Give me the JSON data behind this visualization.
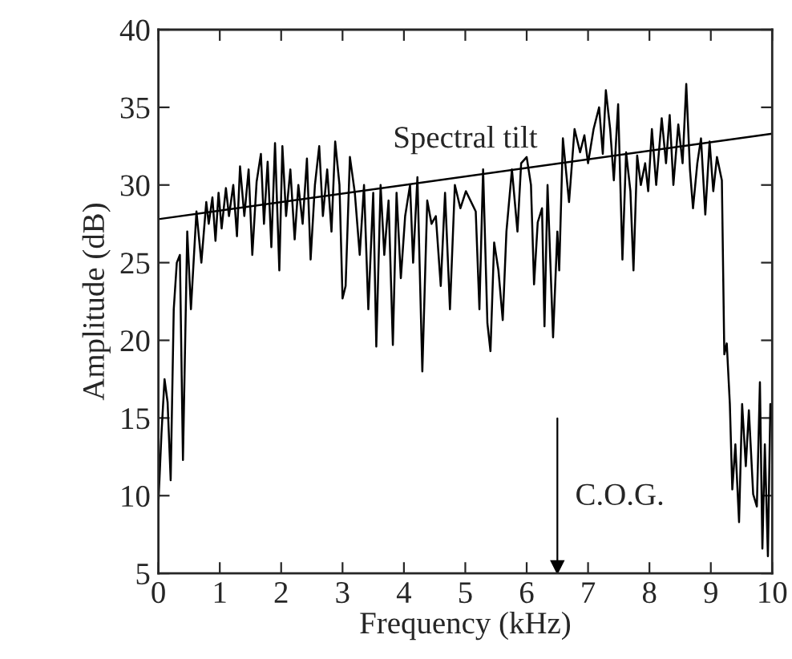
{
  "chart_data": {
    "type": "line",
    "xlabel": "Frequency (kHz)",
    "ylabel": "Amplitude (dB)",
    "xlim": [
      0,
      10
    ],
    "ylim": [
      5,
      40
    ],
    "xticks": [
      0,
      1,
      2,
      3,
      4,
      5,
      6,
      7,
      8,
      9,
      10
    ],
    "yticks": [
      5,
      10,
      15,
      20,
      25,
      30,
      35,
      40
    ],
    "grid": false,
    "legend": false,
    "series": [
      {
        "color": "#000000",
        "x": [
          0,
          0.05,
          0.1,
          0.15,
          0.2,
          0.25,
          0.3,
          0.35,
          0.4,
          0.47,
          0.53,
          0.62,
          0.7,
          0.78,
          0.82,
          0.88,
          0.93,
          0.98,
          1.03,
          1.1,
          1.15,
          1.22,
          1.28,
          1.33,
          1.4,
          1.47,
          1.53,
          1.6,
          1.67,
          1.72,
          1.78,
          1.84,
          1.9,
          1.97,
          2.02,
          2.08,
          2.15,
          2.22,
          2.28,
          2.35,
          2.42,
          2.48,
          2.55,
          2.62,
          2.68,
          2.75,
          2.82,
          2.88,
          2.95,
          3.0,
          3.05,
          3.12,
          3.2,
          3.28,
          3.35,
          3.42,
          3.5,
          3.55,
          3.62,
          3.68,
          3.75,
          3.82,
          3.88,
          3.95,
          4.02,
          4.1,
          4.15,
          4.22,
          4.3,
          4.38,
          4.45,
          4.52,
          4.6,
          4.67,
          4.75,
          4.83,
          4.92,
          5.01,
          5.17,
          5.23,
          5.29,
          5.36,
          5.41,
          5.47,
          5.54,
          5.61,
          5.67,
          5.76,
          5.85,
          5.91,
          6.0,
          6.07,
          6.12,
          6.18,
          6.25,
          6.29,
          6.34,
          6.43,
          6.5,
          6.53,
          6.59,
          6.69,
          6.78,
          6.87,
          6.94,
          7.0,
          7.09,
          7.18,
          7.24,
          7.29,
          7.36,
          7.42,
          7.49,
          7.56,
          7.62,
          7.69,
          7.74,
          7.8,
          7.86,
          7.93,
          7.98,
          8.04,
          8.11,
          8.2,
          8.27,
          8.33,
          8.39,
          8.47,
          8.54,
          8.6,
          8.66,
          8.71,
          8.78,
          8.84,
          8.91,
          8.98,
          9.04,
          9.1,
          9.18,
          9.22,
          9.26,
          9.31,
          9.35,
          9.4,
          9.46,
          9.51,
          9.57,
          9.62,
          9.69,
          9.75,
          9.8,
          9.84,
          9.88,
          9.93,
          9.97
        ],
        "values": [
          9.5,
          14,
          17.5,
          16,
          11,
          22,
          25,
          25.5,
          12.3,
          27,
          22,
          28.3,
          25,
          28.9,
          27.5,
          29.2,
          26.4,
          29.5,
          27.2,
          29.8,
          28,
          30,
          26.7,
          31.2,
          28,
          31,
          25.5,
          30.2,
          32,
          27.5,
          31.5,
          26,
          32.7,
          24.5,
          32.5,
          28,
          31,
          26.5,
          30,
          27.5,
          31.7,
          25.2,
          30,
          32.5,
          28,
          31,
          27,
          32.8,
          30,
          22.7,
          23.5,
          31.8,
          29.5,
          25.5,
          30,
          22,
          29.5,
          19.6,
          30,
          25.5,
          29,
          19.7,
          29.5,
          24,
          28,
          30,
          25,
          30.5,
          18,
          29,
          27.5,
          28,
          23.5,
          29.5,
          22,
          30,
          28.5,
          29.6,
          28.3,
          22,
          31,
          21.1,
          19.3,
          26.3,
          24.5,
          21.3,
          27,
          31,
          27,
          31.4,
          31.8,
          30,
          23.6,
          27.6,
          28.5,
          20.9,
          30,
          20.2,
          27,
          24.5,
          33,
          28.9,
          33.6,
          32.1,
          33.2,
          31.4,
          33.6,
          35,
          32,
          36.1,
          33.6,
          30.3,
          35.2,
          25.2,
          32.1,
          29.6,
          24.5,
          31.9,
          30,
          31.4,
          29.6,
          33.6,
          30,
          34.3,
          31.4,
          34.5,
          30,
          33.9,
          31.4,
          36.5,
          31,
          28.5,
          31.4,
          33,
          28.1,
          32.8,
          29.6,
          31.8,
          30.3,
          19.1,
          19.8,
          15.9,
          10.4,
          13.3,
          8.3,
          15.9,
          11.9,
          15.5,
          10.1,
          9.3,
          17.3,
          6.6,
          13.3,
          6.1,
          15.9
        ]
      },
      {
        "name": "Spectral tilt",
        "color": "#000000",
        "x": [
          0,
          10
        ],
        "values": [
          27.8,
          33.3
        ]
      }
    ],
    "ref_lines": [
      {
        "axis": "x",
        "value": 6.5,
        "label": "C.O.G."
      }
    ]
  }
}
